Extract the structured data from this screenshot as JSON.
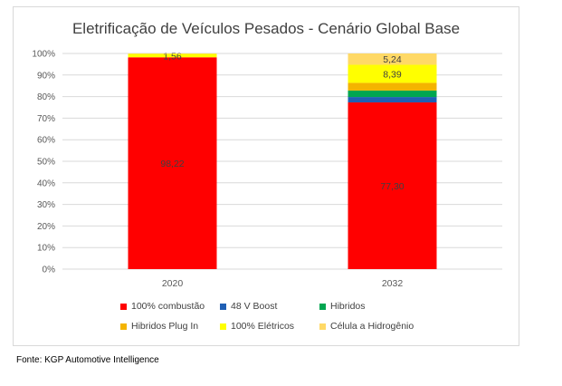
{
  "chart_data": {
    "type": "stacked_bar",
    "title": "Eletrificação de Veículos Pesados - Cenário Global Base",
    "categories": [
      "2020",
      "2032"
    ],
    "ylim": [
      0,
      100
    ],
    "yticks": [
      "0%",
      "10%",
      "20%",
      "30%",
      "40%",
      "50%",
      "60%",
      "70%",
      "80%",
      "90%",
      "100%"
    ],
    "grid": true,
    "legend_position": "bottom",
    "series": [
      {
        "name": "100% combustão",
        "color": "#ff0000",
        "values": [
          98.22,
          77.3
        ],
        "labels": [
          "98,22",
          "77,30"
        ]
      },
      {
        "name": "48 V Boost",
        "color": "#1f5fb4",
        "values": [
          0,
          2.5
        ],
        "labels": [
          "",
          ""
        ]
      },
      {
        "name": "Hibridos",
        "color": "#00a650",
        "values": [
          0,
          3.0
        ],
        "labels": [
          "",
          ""
        ]
      },
      {
        "name": "Hibridos Plug In",
        "color": "#f4b400",
        "values": [
          0,
          3.57
        ],
        "labels": [
          "",
          ""
        ]
      },
      {
        "name": "100% Elétricos",
        "color": "#ffff00",
        "values": [
          1.56,
          8.39
        ],
        "labels": [
          "1,56",
          "8,39"
        ]
      },
      {
        "name": "Célula a Hidrogênio",
        "color": "#ffd966",
        "values": [
          0.22,
          5.24
        ],
        "labels": [
          "",
          "5,24"
        ]
      }
    ]
  },
  "source_text": "Fonte: KGP Automotive Intelligence"
}
